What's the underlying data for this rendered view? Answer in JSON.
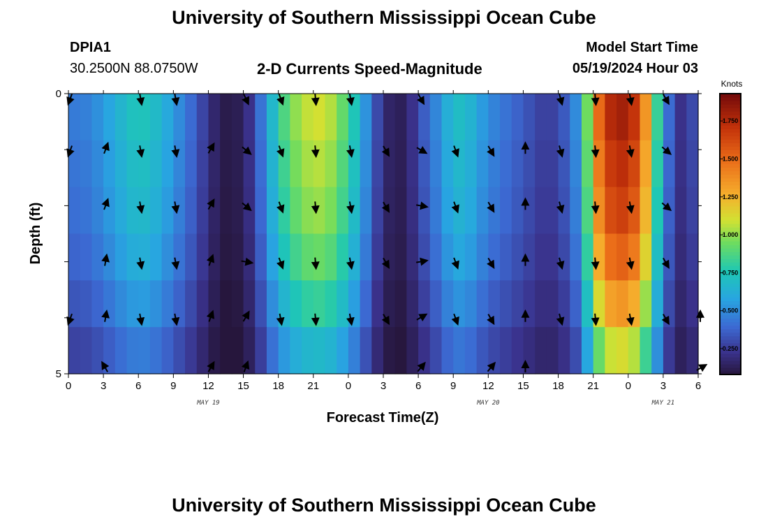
{
  "header": {
    "title": "University of Southern Mississippi Ocean Cube",
    "station": "DPIA1",
    "coords": "30.2500N  88.0750W",
    "subtitle": "2-D Currents Speed-Magnitude",
    "model_label": "Model Start Time",
    "model_time": "05/19/2024 Hour 03"
  },
  "footer": {
    "title": "University of Southern Mississippi Ocean Cube"
  },
  "chart_data": {
    "type": "heatmap",
    "title": "2-D Currents Speed-Magnitude",
    "xlabel": "Forecast Time(Z)",
    "ylabel": "Depth (ft)",
    "x_tick_labels": [
      "0",
      "3",
      "6",
      "9",
      "12",
      "15",
      "18",
      "21",
      "0",
      "3",
      "6",
      "9",
      "12",
      "15",
      "18",
      "21",
      "0",
      "3",
      "6"
    ],
    "x_hours": [
      0,
      3,
      6,
      9,
      12,
      15,
      18,
      21,
      24,
      27,
      30,
      33,
      36,
      39,
      42,
      45,
      48,
      51,
      54
    ],
    "date_labels": [
      {
        "text": "MAY 19",
        "hour": 12
      },
      {
        "text": "MAY 20",
        "hour": 36
      },
      {
        "text": "MAY 21",
        "hour": 51
      }
    ],
    "y_tick_labels": [
      "0",
      "5"
    ],
    "ylim": [
      0,
      5
    ],
    "colorbar": {
      "label": "Knots",
      "min": 0.08,
      "max": 1.93,
      "ticks": [
        "0.250",
        "0.500",
        "0.750",
        "1.000",
        "1.250",
        "1.500",
        "1.750"
      ],
      "tick_values": [
        0.25,
        0.5,
        0.75,
        1.0,
        1.25,
        1.5,
        1.75
      ]
    },
    "depth_levels": [
      0,
      1,
      2,
      3,
      4,
      5
    ],
    "time_profile_hours": [
      0,
      1,
      2,
      3,
      4,
      5,
      6,
      7,
      8,
      9,
      10,
      11,
      12,
      13,
      14,
      15,
      16,
      17,
      18,
      19,
      20,
      21,
      22,
      23,
      24,
      25,
      26,
      27,
      28,
      29,
      30,
      31,
      32,
      33,
      34,
      35,
      36,
      37,
      38,
      39,
      40,
      41,
      42,
      43,
      44,
      45,
      46,
      47,
      48,
      49,
      50,
      51,
      52,
      53,
      54
    ],
    "speed_profile_knots": [
      0.45,
      0.45,
      0.48,
      0.55,
      0.62,
      0.7,
      0.75,
      0.72,
      0.65,
      0.55,
      0.45,
      0.35,
      0.22,
      0.12,
      0.1,
      0.15,
      0.3,
      0.55,
      0.8,
      0.95,
      1.05,
      1.1,
      1.1,
      1.0,
      0.85,
      0.65,
      0.4,
      0.2,
      0.12,
      0.15,
      0.3,
      0.42,
      0.55,
      0.7,
      0.7,
      0.6,
      0.5,
      0.45,
      0.4,
      0.35,
      0.3,
      0.25,
      0.3,
      0.4,
      0.6,
      1.3,
      1.7,
      1.8,
      1.8,
      1.6,
      1.1,
      0.55,
      0.25,
      0.2,
      0.4
    ],
    "depth_speed_factor": [
      1.0,
      0.96,
      0.92,
      0.85,
      0.75,
      0.62
    ],
    "arrow_hours": [
      0,
      3,
      6,
      9,
      12,
      15,
      18,
      21,
      24,
      27,
      30,
      33,
      36,
      39,
      42,
      45,
      48,
      51,
      54
    ],
    "arrow_depths": [
      0,
      1,
      2,
      3,
      4,
      5
    ],
    "arrow_direction_deg": [
      [
        200,
        null,
        170,
        170,
        null,
        155,
        160,
        175,
        170,
        null,
        150,
        null,
        null,
        null,
        165,
        175,
        170,
        150,
        null
      ],
      [
        200,
        20,
        170,
        170,
        30,
        130,
        160,
        175,
        170,
        150,
        120,
        160,
        150,
        0,
        165,
        175,
        170,
        130,
        null
      ],
      [
        null,
        20,
        170,
        170,
        30,
        130,
        160,
        175,
        170,
        150,
        100,
        160,
        150,
        0,
        165,
        175,
        170,
        130,
        null
      ],
      [
        null,
        10,
        170,
        170,
        20,
        100,
        160,
        175,
        170,
        150,
        80,
        160,
        150,
        0,
        165,
        175,
        170,
        150,
        null
      ],
      [
        200,
        10,
        170,
        170,
        20,
        30,
        170,
        175,
        170,
        150,
        60,
        160,
        150,
        0,
        165,
        175,
        170,
        150,
        0
      ],
      [
        null,
        330,
        null,
        null,
        30,
        20,
        null,
        null,
        null,
        null,
        40,
        null,
        40,
        0,
        null,
        null,
        null,
        null,
        60
      ]
    ]
  }
}
